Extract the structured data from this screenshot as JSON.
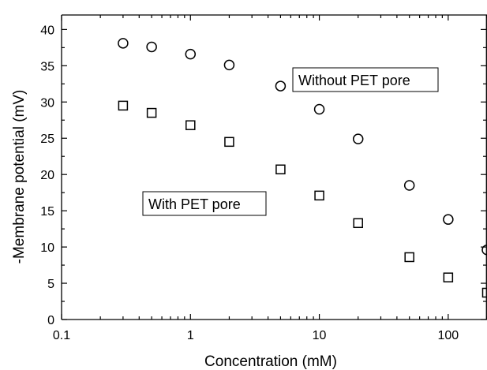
{
  "chart_data": {
    "type": "scatter",
    "title": "",
    "xlabel": "Concentration (mM)",
    "ylabel": "-Membrane potential (mV)",
    "x_scale": "log",
    "xlim": [
      0.1,
      200
    ],
    "ylim": [
      0,
      42
    ],
    "x_ticks": [
      0.1,
      1,
      10,
      100
    ],
    "x_tick_labels": [
      "0.1",
      "1",
      "10",
      "100"
    ],
    "y_ticks": [
      0,
      5,
      10,
      15,
      20,
      25,
      30,
      35,
      40
    ],
    "y_tick_labels": [
      "0",
      "5",
      "10",
      "15",
      "20",
      "25",
      "30",
      "35",
      "40"
    ],
    "grid": false,
    "series": [
      {
        "marker": "circle",
        "x": [
          0.3,
          0.5,
          1,
          2,
          5,
          10,
          20,
          50,
          100,
          200
        ],
        "y": [
          38.1,
          37.6,
          36.6,
          35.1,
          32.2,
          29.0,
          24.9,
          18.5,
          13.8,
          9.6
        ]
      },
      {
        "marker": "square",
        "x": [
          0.3,
          0.5,
          1,
          2,
          5,
          10,
          20,
          50,
          100,
          200
        ],
        "y": [
          29.5,
          28.5,
          26.8,
          24.5,
          20.7,
          17.1,
          13.3,
          8.6,
          5.8,
          3.7
        ]
      }
    ],
    "annotations": [
      {
        "text": "Without  PET pore"
      },
      {
        "text": "With  PET pore"
      }
    ]
  }
}
